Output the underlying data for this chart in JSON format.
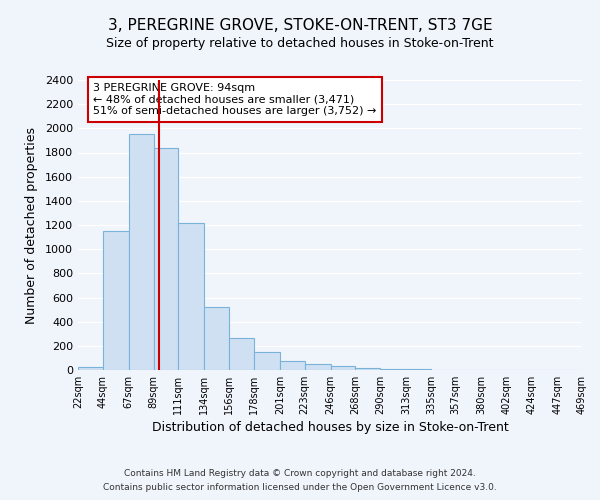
{
  "title": "3, PEREGRINE GROVE, STOKE-ON-TRENT, ST3 7GE",
  "subtitle": "Size of property relative to detached houses in Stoke-on-Trent",
  "xlabel": "Distribution of detached houses by size in Stoke-on-Trent",
  "ylabel": "Number of detached properties",
  "bar_values": [
    25,
    1150,
    1950,
    1840,
    1220,
    520,
    265,
    145,
    75,
    50,
    35,
    15,
    10,
    5,
    3,
    2,
    1,
    1,
    0,
    0
  ],
  "bin_edges": [
    22,
    44,
    67,
    89,
    111,
    134,
    156,
    178,
    201,
    223,
    246,
    268,
    290,
    313,
    335,
    357,
    380,
    402,
    424,
    447,
    469
  ],
  "tick_labels": [
    "22sqm",
    "44sqm",
    "67sqm",
    "89sqm",
    "111sqm",
    "134sqm",
    "156sqm",
    "178sqm",
    "201sqm",
    "223sqm",
    "246sqm",
    "268sqm",
    "290sqm",
    "313sqm",
    "335sqm",
    "357sqm",
    "380sqm",
    "402sqm",
    "424sqm",
    "447sqm",
    "469sqm"
  ],
  "bar_color": "#cfe0f3",
  "bar_edge_color": "#7ab3d9",
  "vline_x": 94,
  "vline_color": "#cc0000",
  "annotation_line1": "3 PEREGRINE GROVE: 94sqm",
  "annotation_line2": "← 48% of detached houses are smaller (3,471)",
  "annotation_line3": "51% of semi-detached houses are larger (3,752) →",
  "annotation_box_color": "#ffffff",
  "annotation_box_edge": "#cc0000",
  "ylim": [
    0,
    2400
  ],
  "yticks": [
    0,
    200,
    400,
    600,
    800,
    1000,
    1200,
    1400,
    1600,
    1800,
    2000,
    2200,
    2400
  ],
  "footer1": "Contains HM Land Registry data © Crown copyright and database right 2024.",
  "footer2": "Contains public sector information licensed under the Open Government Licence v3.0.",
  "bg_color": "#f0f4fb",
  "grid_color": "#ffffff",
  "title_fontsize": 11,
  "subtitle_fontsize": 9,
  "xlabel_fontsize": 9,
  "ylabel_fontsize": 9,
  "tick_fontsize": 7,
  "ytick_fontsize": 8,
  "footer_fontsize": 6.5,
  "annotation_fontsize": 8
}
